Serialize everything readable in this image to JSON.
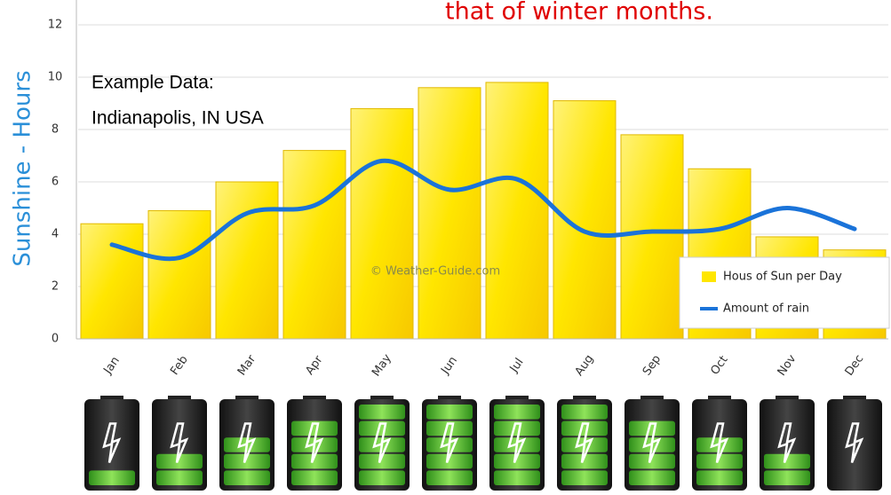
{
  "chart_data": {
    "type": "bar_line",
    "title": "that of winter months.",
    "annotation": [
      "Example Data:",
      "Indianapolis, IN USA"
    ],
    "watermark": "© Weather-Guide.com",
    "y_label": "Sunshine - Hours",
    "categories": [
      "Jan",
      "Feb",
      "Mar",
      "Apr",
      "May",
      "Jun",
      "Jul",
      "Aug",
      "Sep",
      "Oct",
      "Nov",
      "Dec"
    ],
    "series": [
      {
        "name": "Hous of Sun per Day",
        "type": "bar",
        "color": "#ffe600",
        "values": [
          4.4,
          4.9,
          6.0,
          7.2,
          8.8,
          9.6,
          9.8,
          9.1,
          7.8,
          6.5,
          3.9,
          3.4
        ]
      },
      {
        "name": "Amount of rain",
        "type": "line",
        "color": "#1a73d9",
        "values": [
          3.6,
          3.1,
          4.8,
          5.1,
          6.8,
          5.7,
          6.1,
          4.1,
          4.1,
          4.2,
          5.0,
          4.2
        ]
      }
    ],
    "battery_levels": [
      1,
      2,
      3,
      4,
      5,
      5,
      5,
      5,
      4,
      3,
      2,
      0
    ],
    "battery_max": 5,
    "ylim": [
      0,
      12
    ],
    "yticks": [
      0,
      2,
      4,
      6,
      8,
      10,
      12
    ],
    "grid": true,
    "legend": "lower right"
  }
}
